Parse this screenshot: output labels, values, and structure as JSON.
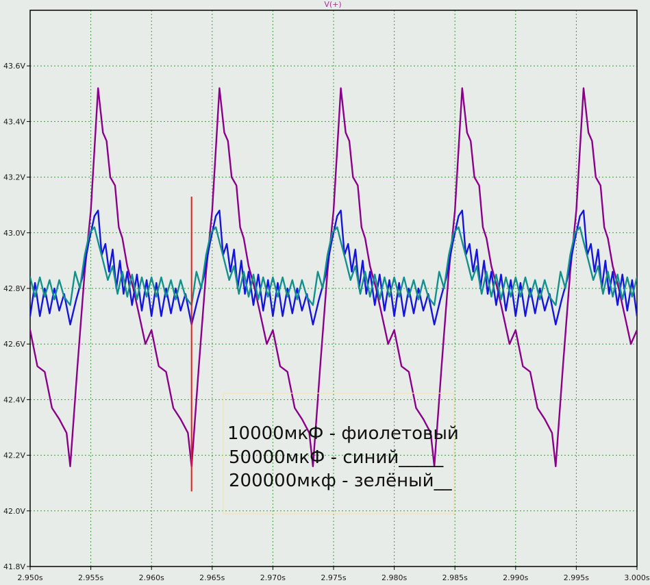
{
  "chart_data": {
    "type": "line",
    "title": "V(+)",
    "xlabel": "",
    "ylabel": "",
    "xlim": [
      2.95,
      3.0
    ],
    "ylim": [
      41.8,
      43.8
    ],
    "x_ticks": [
      2.95,
      2.955,
      2.96,
      2.965,
      2.97,
      2.975,
      2.98,
      2.985,
      2.99,
      2.995,
      3.0
    ],
    "x_tick_labels": [
      "2.950s",
      "2.955s",
      "2.960s",
      "2.965s",
      "2.970s",
      "2.975s",
      "2.980s",
      "2.985s",
      "2.990s",
      "2.995s",
      "3.000s"
    ],
    "y_ticks": [
      41.8,
      42.0,
      42.2,
      42.4,
      42.6,
      42.8,
      43.0,
      43.2,
      43.4,
      43.6
    ],
    "y_tick_labels": [
      "41.8V",
      "42.0V",
      "42.2V",
      "42.4V",
      "42.6V",
      "42.8V",
      "43.0V",
      "43.2V",
      "43.4V",
      "43.6V"
    ],
    "grid": true,
    "period": 0.01,
    "series": [
      {
        "color": "#8b008b",
        "cycle_x": [
          2.9533,
          2.9539,
          2.9545,
          2.955,
          2.9553,
          2.9556,
          2.956,
          2.9563,
          2.9566,
          2.957,
          2.9573,
          2.9576,
          2.958,
          2.9585,
          2.959,
          2.9595,
          2.96,
          2.9606,
          2.9612,
          2.9618,
          2.9624,
          2.963,
          2.9633
        ],
        "cycle_y": [
          42.16,
          42.52,
          42.86,
          43.08,
          43.3,
          43.52,
          43.36,
          43.33,
          43.2,
          43.17,
          43.02,
          42.98,
          42.88,
          42.8,
          42.7,
          42.6,
          42.65,
          42.52,
          42.5,
          42.37,
          42.33,
          42.28,
          42.16
        ]
      },
      {
        "color": "#1414dc",
        "cycle_x": [
          2.9533,
          2.9538,
          2.9543,
          2.9548,
          2.9553,
          2.9556,
          2.9559,
          2.9562,
          2.9565,
          2.9568,
          2.9571,
          2.9574,
          2.9577,
          2.958,
          2.9584,
          2.9588,
          2.9592,
          2.9596,
          2.96,
          2.9604,
          2.9608,
          2.9612,
          2.9616,
          2.962,
          2.9624,
          2.9628,
          2.9633
        ],
        "cycle_y": [
          42.67,
          42.76,
          42.84,
          42.96,
          43.06,
          43.08,
          42.92,
          42.96,
          42.86,
          42.94,
          42.8,
          42.9,
          42.78,
          42.86,
          42.74,
          42.85,
          42.72,
          42.83,
          42.7,
          42.82,
          42.7,
          42.8,
          42.71,
          42.8,
          42.72,
          42.78,
          42.67
        ]
      },
      {
        "color": "#14908c",
        "cycle_x": [
          2.9533,
          2.9537,
          2.9541,
          2.9545,
          2.9549,
          2.9553,
          2.9557,
          2.956,
          2.9564,
          2.9568,
          2.9572,
          2.9576,
          2.958,
          2.9584,
          2.9588,
          2.9592,
          2.9596,
          2.96,
          2.9604,
          2.9608,
          2.9612,
          2.9616,
          2.962,
          2.9624,
          2.9628,
          2.9633
        ],
        "cycle_y": [
          42.74,
          42.86,
          42.8,
          42.92,
          43.0,
          43.02,
          42.95,
          42.9,
          42.83,
          42.88,
          42.78,
          42.86,
          42.77,
          42.85,
          42.76,
          42.84,
          42.77,
          42.84,
          42.77,
          42.84,
          42.77,
          42.83,
          42.76,
          42.83,
          42.77,
          42.74
        ]
      }
    ],
    "cursor": {
      "x": 2.9633,
      "y_from": 42.07,
      "y_to": 43.13,
      "color": "#e02020"
    },
    "annotation_lines": [
      "10000мкФ - фиолетовый",
      "50000мкФ - синий_____",
      "200000мкф - зелёный__"
    ],
    "colors": {
      "background": "#e8ece8",
      "grid": "#3c9c3c",
      "axis": "#000000"
    }
  }
}
